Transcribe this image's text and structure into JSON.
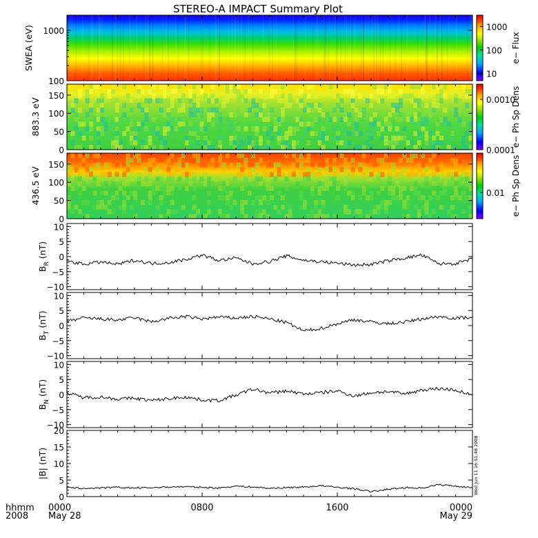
{
  "title": "STEREO-A IMPACT Summary Plot",
  "time_axis": {
    "row1_label": "hhmm",
    "row2_label": "2008",
    "ticks": [
      {
        "hhmm": "0000",
        "date": "May 28"
      },
      {
        "hhmm": "0800",
        "date": ""
      },
      {
        "hhmm": "1600",
        "date": ""
      },
      {
        "hhmm": "0000",
        "date": "May 29"
      }
    ]
  },
  "side_stamp": "Wed Jun 11 16:51:48 2008",
  "colors": {
    "spectrogram_scale": [
      "#7a00ff",
      "#0000ff",
      "#00a8ff",
      "#00e0a0",
      "#00d000",
      "#a0e000",
      "#ffff00",
      "#ffa000",
      "#ff3000",
      "#e00000"
    ]
  },
  "chart_data": [
    {
      "type": "heatmap",
      "name": "swea",
      "ylabel": "SWEA (eV)",
      "yscale": "log",
      "ylim": [
        100,
        2000
      ],
      "yticks": [
        "1000",
        "100"
      ],
      "colorbar": {
        "label": "e− Flux",
        "scale": "log",
        "range": [
          5,
          3000
        ],
        "ticks": [
          "1000",
          "100",
          "10"
        ]
      }
    },
    {
      "type": "heatmap",
      "name": "pad883",
      "ylabel": "883.3 eV",
      "ylim": [
        0,
        180
      ],
      "yticks": [
        "150",
        "100",
        "50",
        "0"
      ],
      "colorbar": {
        "label": "e− Ph Sp Dens",
        "scale": "log",
        "range": [
          0.0001,
          0.002
        ],
        "ticks": [
          "0.0010",
          "0.0001"
        ]
      }
    },
    {
      "type": "heatmap",
      "name": "pad436",
      "ylabel": "436.5 eV",
      "ylim": [
        0,
        180
      ],
      "yticks": [
        "150",
        "100",
        "50",
        "0"
      ],
      "colorbar": {
        "label": "e− Ph Sp Dens",
        "scale": "log",
        "range": [
          0.004,
          0.04
        ],
        "ticks": [
          "0.01"
        ]
      }
    },
    {
      "type": "line",
      "name": "br",
      "ylabel_main": "B",
      "ylabel_sub": "R",
      "ylabel_unit": " (nT)",
      "ylim": [
        -11,
        11
      ],
      "yticks": [
        "10",
        "5",
        "0",
        "−5",
        "−10"
      ],
      "x": [
        0,
        1,
        2,
        3,
        4,
        5,
        6,
        7,
        8,
        9,
        10,
        11,
        12,
        13,
        14,
        15,
        16,
        17,
        18,
        19,
        20,
        21,
        22,
        23,
        24
      ],
      "y": [
        -1.5,
        -2.5,
        -1.8,
        -2.6,
        -1.2,
        -2.3,
        -2.0,
        -1.0,
        0.5,
        -1.3,
        -0.5,
        -2.4,
        -1.6,
        0.2,
        -1.2,
        -1.7,
        -2.2,
        -2.8,
        -2.6,
        -1.4,
        -0.5,
        0.5,
        -2.4,
        -2.3,
        -0.8
      ]
    },
    {
      "type": "line",
      "name": "bt",
      "ylabel_main": "B",
      "ylabel_sub": "T",
      "ylabel_unit": " (nT)",
      "ylim": [
        -11,
        11
      ],
      "yticks": [
        "10",
        "5",
        "0",
        "−5",
        "−10"
      ],
      "x": [
        0,
        1,
        2,
        3,
        4,
        5,
        6,
        7,
        8,
        9,
        10,
        11,
        12,
        13,
        14,
        15,
        16,
        17,
        18,
        19,
        20,
        21,
        22,
        23,
        24
      ],
      "y": [
        1.5,
        2.5,
        2.2,
        1.8,
        2.6,
        1.2,
        2.4,
        3.0,
        2.2,
        2.8,
        2.5,
        3.0,
        2.2,
        1.0,
        -1.8,
        -1.0,
        0.6,
        2.0,
        1.2,
        0.6,
        1.2,
        2.2,
        3.0,
        2.4,
        2.9
      ]
    },
    {
      "type": "line",
      "name": "bn",
      "ylabel_main": "B",
      "ylabel_sub": "N",
      "ylabel_unit": " (nT)",
      "ylim": [
        -11,
        11
      ],
      "yticks": [
        "10",
        "5",
        "0",
        "−5",
        "−10"
      ],
      "x": [
        0,
        1,
        2,
        3,
        4,
        5,
        6,
        7,
        8,
        9,
        10,
        11,
        12,
        13,
        14,
        15,
        16,
        17,
        18,
        19,
        20,
        21,
        22,
        23,
        24
      ],
      "y": [
        0.5,
        -1.0,
        -0.8,
        -1.5,
        -1.2,
        -2.0,
        -1.4,
        -0.8,
        -1.8,
        -2.0,
        -0.2,
        1.8,
        0.5,
        1.2,
        0.2,
        0.6,
        1.2,
        -0.5,
        0.6,
        1.0,
        0.2,
        1.5,
        2.0,
        1.5,
        -0.3
      ]
    },
    {
      "type": "line",
      "name": "bmag",
      "ylabel": "|B| (nT)",
      "ylim": [
        0,
        20
      ],
      "yticks": [
        "20",
        "15",
        "10",
        "5",
        "0"
      ],
      "x": [
        0,
        1,
        2,
        3,
        4,
        5,
        6,
        7,
        8,
        9,
        10,
        11,
        12,
        13,
        14,
        15,
        16,
        17,
        18,
        19,
        20,
        21,
        22,
        23,
        24
      ],
      "y": [
        2.7,
        2.5,
        2.6,
        2.8,
        2.6,
        2.7,
        2.9,
        3.0,
        2.8,
        2.6,
        3.2,
        2.9,
        2.5,
        2.7,
        2.9,
        3.3,
        2.8,
        2.4,
        1.5,
        2.2,
        2.7,
        2.6,
        3.6,
        3.2,
        2.7
      ]
    }
  ]
}
